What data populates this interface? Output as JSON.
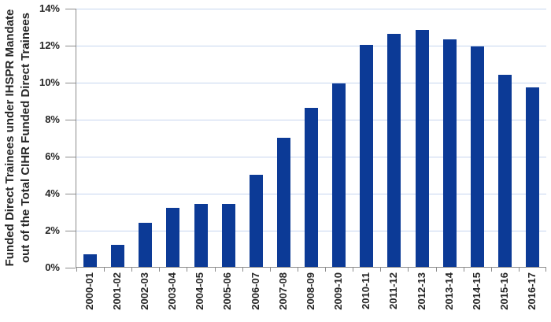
{
  "chart_data": {
    "type": "bar",
    "title": "",
    "ylabel_line1": "Funded Direct Trainees under IHSPR Mandate",
    "ylabel_line2": "out of the Total CIHR Funded Direct Trainees",
    "xlabel": "",
    "categories": [
      "2000-01",
      "2001-02",
      "2002-03",
      "2003-04",
      "2004-05",
      "2005-06",
      "2006-07",
      "2007-08",
      "2008-09",
      "2009-10",
      "2010-11",
      "2011-12",
      "2012-13",
      "2013-14",
      "2014-15",
      "2015-16",
      "2016-17"
    ],
    "values": [
      0.7,
      1.2,
      2.4,
      3.2,
      3.4,
      3.4,
      5.0,
      7.0,
      8.6,
      9.9,
      12.0,
      12.6,
      12.8,
      12.3,
      11.9,
      10.4,
      9.7
    ],
    "yticks": [
      "0%",
      "2%",
      "4%",
      "6%",
      "8%",
      "10%",
      "12%",
      "14%"
    ],
    "ylim": [
      0,
      14
    ],
    "ytick_step": 2,
    "grid": true,
    "legend": false,
    "colors": {
      "bar": "#0c3a96",
      "gridline": "#c6d5ef",
      "axis": "#8c8c8c",
      "text": "#262626",
      "background": "#ffffff"
    }
  }
}
